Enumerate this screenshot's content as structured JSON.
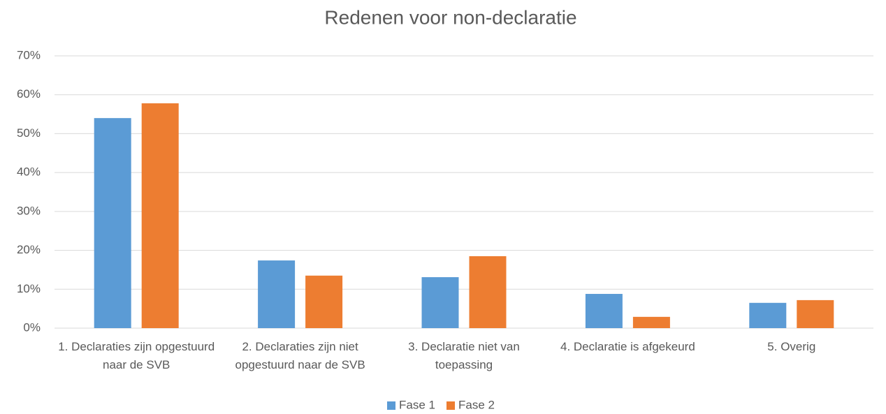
{
  "chart_data": {
    "type": "bar",
    "title": "Redenen voor non-declaratie",
    "categories": [
      "1. Declaraties zijn opgestuurd naar de SVB",
      "2. Declaraties zijn niet opgestuurd naar de SVB",
      "3. Declaratie niet van toepassing",
      "4. Declaratie is afgekeurd",
      "5. Overig"
    ],
    "series": [
      {
        "name": "Fase 1",
        "color": "#5b9bd5",
        "values": [
          54,
          17.4,
          13.1,
          8.8,
          6.5
        ]
      },
      {
        "name": "Fase 2",
        "color": "#ed7d31",
        "values": [
          57.8,
          13.5,
          18.5,
          2.9,
          7.2
        ]
      }
    ],
    "ylim": [
      0,
      70
    ],
    "yticks": [
      {
        "value": 0,
        "label": "0%"
      },
      {
        "value": 10,
        "label": "10%"
      },
      {
        "value": 20,
        "label": "20%"
      },
      {
        "value": 30,
        "label": "30%"
      },
      {
        "value": 40,
        "label": "40%"
      },
      {
        "value": 50,
        "label": "50%"
      },
      {
        "value": 60,
        "label": "60%"
      },
      {
        "value": 70,
        "label": "70%"
      }
    ],
    "grid": true,
    "legend": "bottom"
  }
}
